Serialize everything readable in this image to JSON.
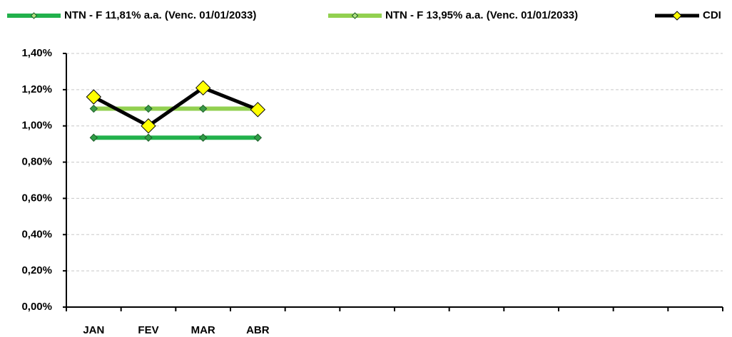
{
  "chart_data": {
    "type": "line",
    "categories": [
      "JAN",
      "FEV",
      "MAR",
      "ABR",
      null,
      null,
      null,
      null,
      null,
      null,
      null,
      null
    ],
    "series": [
      {
        "name": "NTN - F 11,81% a.a. (Venc. 01/01/2033)",
        "color": "#22b14c",
        "values": [
          0.935,
          0.935,
          0.935,
          0.935,
          null,
          null,
          null,
          null,
          null,
          null,
          null,
          null
        ]
      },
      {
        "name": "NTN - F 13,95% a.a. (Venc. 01/01/2033)",
        "color": "#92d050",
        "values": [
          1.095,
          1.095,
          1.095,
          1.095,
          null,
          null,
          null,
          null,
          null,
          null,
          null,
          null
        ]
      },
      {
        "name": "CDI",
        "color": "#000000",
        "values": [
          1.16,
          1.0,
          1.21,
          1.09,
          null,
          null,
          null,
          null,
          null,
          null,
          null,
          null
        ]
      }
    ],
    "ylim": [
      0,
      1.4
    ],
    "yticks": [
      {
        "value": 0,
        "label": "0,00%"
      },
      {
        "value": 0.2,
        "label": "0,20%"
      },
      {
        "value": 0.4,
        "label": "0,40%"
      },
      {
        "value": 0.6,
        "label": "0,60%"
      },
      {
        "value": 0.8,
        "label": "0,80%"
      },
      {
        "value": 1.0,
        "label": "1,00%"
      },
      {
        "value": 1.2,
        "label": "1,20%"
      },
      {
        "value": 1.4,
        "label": "1,40%"
      }
    ],
    "grid": true,
    "legend": "top"
  }
}
